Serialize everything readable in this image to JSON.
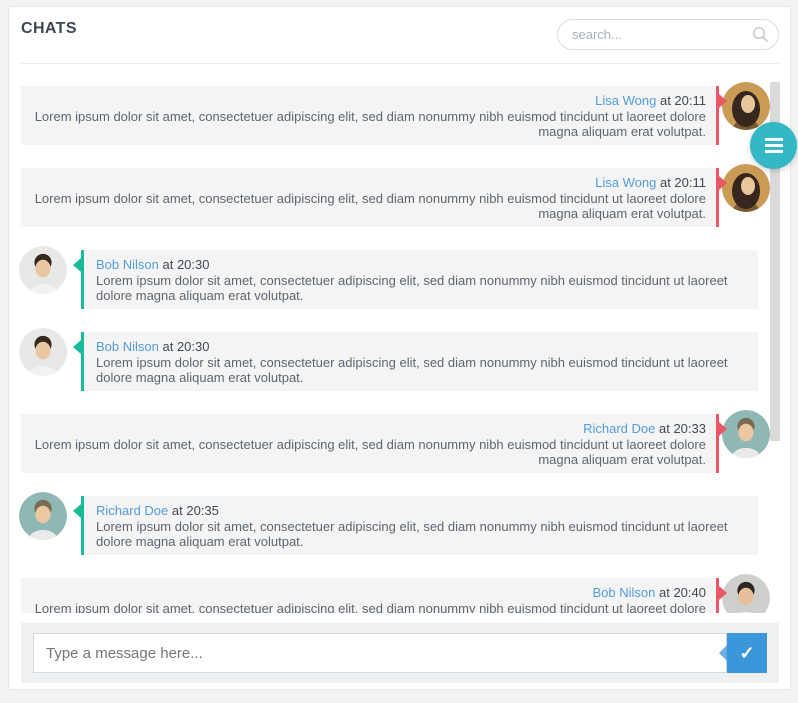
{
  "header": {
    "title": "CHATS",
    "search_placeholder": "search..."
  },
  "colors": {
    "accent_red": "#ea5766",
    "accent_green": "#1aba9c",
    "name_blue": "#549cd6",
    "send_blue": "#3b97da",
    "fab_teal": "#35b8c6",
    "bubble_bg": "#f4f4f5"
  },
  "chat": {
    "time_prefix": "at",
    "messages": [
      {
        "name": "Lisa Wong",
        "time": "20:11",
        "side": "right",
        "text": "Lorem ipsum dolor sit amet, consectetuer adipiscing elit, sed diam nonummy nibh euismod tincidunt ut laoreet dolore magna aliquam erat volutpat.",
        "avatar": {
          "style": "female",
          "bg": "#c99b54",
          "hair": "#36261e",
          "skin": "#eac69b",
          "shirt": "#7a5c33"
        }
      },
      {
        "name": "Lisa Wong",
        "time": "20:11",
        "side": "right",
        "text": "Lorem ipsum dolor sit amet, consectetuer adipiscing elit, sed diam nonummy nibh euismod tincidunt ut laoreet dolore magna aliquam erat volutpat.",
        "avatar": {
          "style": "female",
          "bg": "#c99b54",
          "hair": "#36261e",
          "skin": "#eac69b",
          "shirt": "#7a5c33"
        }
      },
      {
        "name": "Bob Nilson",
        "time": "20:30",
        "side": "left",
        "text": "Lorem ipsum dolor sit amet, consectetuer adipiscing elit, sed diam nonummy nibh euismod tincidunt ut laoreet dolore magna aliquam erat volutpat.",
        "avatar": {
          "style": "male",
          "bg": "#e8e8e6",
          "hair": "#33291f",
          "skin": "#e9c7a3",
          "shirt": "#f2f2f0"
        }
      },
      {
        "name": "Bob Nilson",
        "time": "20:30",
        "side": "left",
        "text": "Lorem ipsum dolor sit amet, consectetuer adipiscing elit, sed diam nonummy nibh euismod tincidunt ut laoreet dolore magna aliquam erat volutpat.",
        "avatar": {
          "style": "male",
          "bg": "#e8e8e6",
          "hair": "#33291f",
          "skin": "#e9c7a3",
          "shirt": "#f2f2f0"
        }
      },
      {
        "name": "Richard Doe",
        "time": "20:33",
        "side": "right",
        "text": "Lorem ipsum dolor sit amet, consectetuer adipiscing elit, sed diam nonummy nibh euismod tincidunt ut laoreet dolore magna aliquam erat volutpat.",
        "avatar": {
          "style": "male",
          "bg": "#8fb8b4",
          "hair": "#7a6a52",
          "skin": "#ecc8a2",
          "shirt": "#eaeaea"
        }
      },
      {
        "name": "Richard Doe",
        "time": "20:35",
        "side": "left",
        "text": "Lorem ipsum dolor sit amet, consectetuer adipiscing elit, sed diam nonummy nibh euismod tincidunt ut laoreet dolore magna aliquam erat volutpat.",
        "avatar": {
          "style": "male",
          "bg": "#8fb8b4",
          "hair": "#7a6a52",
          "skin": "#ecc8a2",
          "shirt": "#eaeaea"
        }
      },
      {
        "name": "Bob Nilson",
        "time": "20:40",
        "side": "right",
        "text": "Lorem ipsum dolor sit amet, consectetuer adipiscing elit, sed diam nonummy nibh euismod tincidunt ut laoreet dolore magna aliquam erat volutpat.",
        "avatar": {
          "style": "male",
          "bg": "#cfcfcd",
          "hair": "#2e2620",
          "skin": "#e6c09a",
          "shirt": "#f0f0ee"
        }
      }
    ]
  },
  "composer": {
    "placeholder": "Type a message here...",
    "send_icon": "check",
    "send_glyph": "✓"
  },
  "fab": {
    "icon": "hamburger"
  }
}
